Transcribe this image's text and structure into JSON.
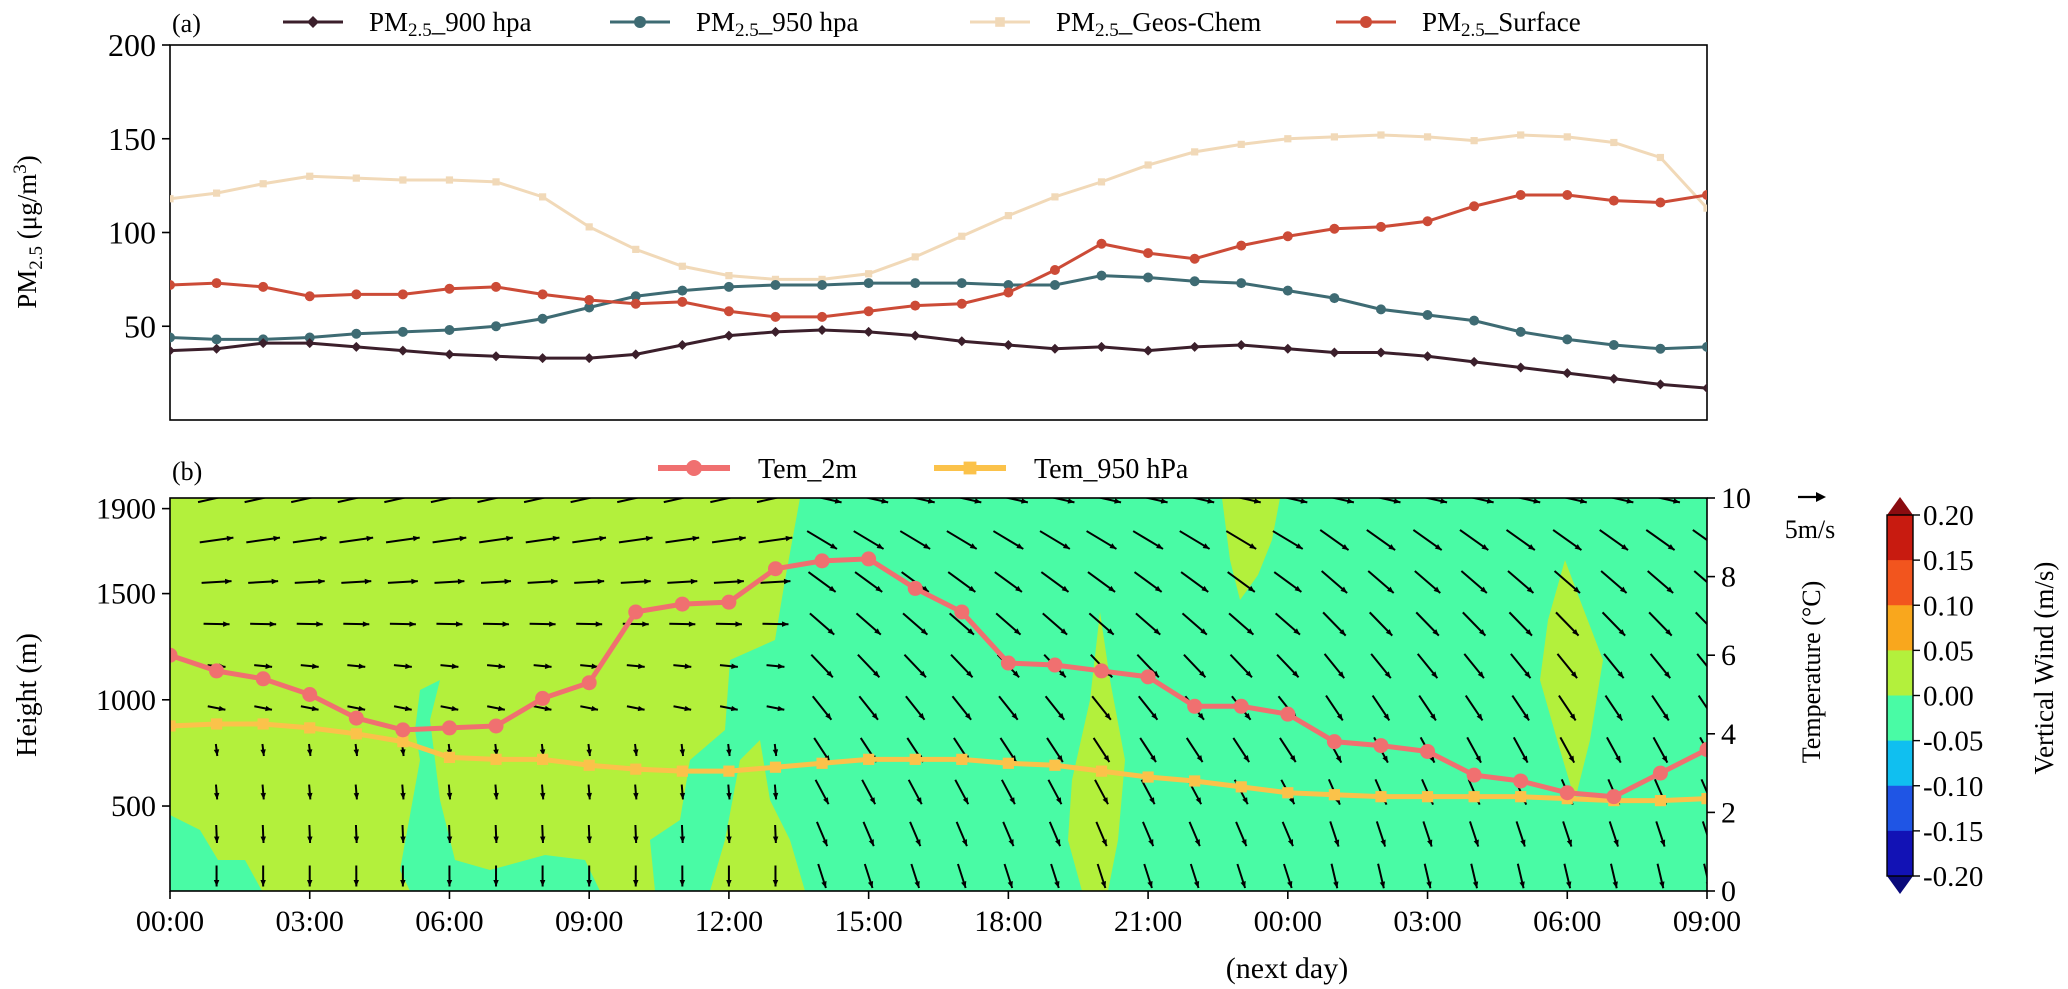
{
  "chart_data": [
    {
      "type": "line",
      "panel_label": "(a)",
      "ylabel": "PM2.5 (μg/m3)",
      "ylabel_main": "PM",
      "ylabel_sub": "2.5",
      "ylabel_unit": " (μg/m",
      "ylabel_sup": "3",
      "ylabel_close": ")",
      "ylim": [
        0,
        200
      ],
      "yticks": [
        50,
        100,
        150,
        200
      ],
      "xlim": [
        0,
        33
      ],
      "grid": false,
      "legend_position": "top",
      "series": [
        {
          "name": "PM2.5_900 hpa",
          "label_main": "PM",
          "label_sub": "2.5",
          "label_rest": "_900 hpa",
          "color": "#3b1f2b",
          "marker": "diamond",
          "values": [
            37,
            38,
            41,
            41,
            39,
            37,
            35,
            34,
            33,
            33,
            35,
            40,
            45,
            47,
            48,
            47,
            45,
            42,
            40,
            38,
            39,
            37,
            39,
            40,
            38,
            36,
            36,
            34,
            31,
            28,
            25,
            22,
            19,
            17
          ]
        },
        {
          "name": "PM2.5_950 hpa",
          "label_main": "PM",
          "label_sub": "2.5",
          "label_rest": "_950 hpa",
          "color": "#3e6b73",
          "marker": "circle",
          "values": [
            44,
            43,
            43,
            44,
            46,
            47,
            48,
            50,
            54,
            60,
            66,
            69,
            71,
            72,
            72,
            73,
            73,
            73,
            72,
            72,
            77,
            76,
            74,
            73,
            69,
            65,
            59,
            56,
            53,
            47,
            43,
            40,
            38,
            39
          ]
        },
        {
          "name": "PM2.5_Geos-Chem",
          "label_main": "PM",
          "label_sub": "2.5",
          "label_rest": "_Geos-Chem",
          "color": "#f1d9b8",
          "marker": "square",
          "values": [
            118,
            121,
            126,
            130,
            129,
            128,
            128,
            127,
            119,
            103,
            91,
            82,
            77,
            75,
            75,
            78,
            87,
            98,
            109,
            119,
            127,
            136,
            143,
            147,
            150,
            151,
            152,
            151,
            149,
            152,
            151,
            148,
            140,
            113
          ]
        },
        {
          "name": "PM2.5_Surface",
          "label_main": "PM",
          "label_sub": "2.5",
          "label_rest": "_Surface",
          "color": "#cc4b37",
          "marker": "circle",
          "values": [
            72,
            73,
            71,
            66,
            67,
            67,
            70,
            71,
            67,
            64,
            62,
            63,
            58,
            55,
            55,
            58,
            61,
            62,
            68,
            80,
            94,
            89,
            86,
            93,
            98,
            102,
            103,
            106,
            114,
            120,
            120,
            117,
            116,
            120
          ]
        }
      ]
    },
    {
      "type": "heatmap",
      "panel_label": "(b)",
      "ylabel_left": "Height (m)",
      "ylabel_right": "Temperature (°C)",
      "colorbar_label": "Vertical Wind (m/s)",
      "ylim_left": [
        100,
        1950
      ],
      "yticks_left": [
        500,
        1000,
        1500,
        1900
      ],
      "ylim_right": [
        0,
        10
      ],
      "yticks_right": [
        0,
        2,
        4,
        6,
        8,
        10
      ],
      "xlim": [
        0,
        33
      ],
      "xtick_labels": [
        "00:00",
        "03:00",
        "06:00",
        "09:00",
        "12:00",
        "15:00",
        "18:00",
        "21:00",
        "00:00",
        "03:00",
        "06:00",
        "09:00"
      ],
      "xlabel_note": "(next day)",
      "wind_scale_label": "5m/s",
      "legend_position": "top",
      "colorbar_ticks": [
        "0.20",
        "0.15",
        "0.10",
        "0.05",
        "0.00",
        "-0.05",
        "-0.10",
        "-0.15",
        "-0.20"
      ],
      "colorbar_colors": [
        "#c81b10",
        "#f2551e",
        "#f9a71d",
        "#b3f03c",
        "#49fba5",
        "#10bff0",
        "#1f55e5",
        "#1212b5"
      ],
      "series": [
        {
          "name": "Tem_2m",
          "color": "#f07070",
          "marker": "circle",
          "values": [
            6.0,
            5.6,
            5.4,
            5.0,
            4.4,
            4.1,
            4.15,
            4.2,
            4.9,
            5.3,
            7.1,
            7.3,
            7.35,
            8.2,
            8.4,
            8.45,
            7.7,
            7.1,
            5.8,
            5.75,
            5.6,
            5.45,
            4.7,
            4.7,
            4.5,
            3.8,
            3.7,
            3.55,
            2.95,
            2.8,
            2.5,
            2.4,
            3.0,
            3.6
          ]
        },
        {
          "name": "Tem_950 hPa",
          "color": "#fbc24a",
          "marker": "square",
          "values": [
            4.2,
            4.25,
            4.25,
            4.15,
            4.0,
            3.8,
            3.4,
            3.35,
            3.35,
            3.2,
            3.1,
            3.05,
            3.05,
            3.15,
            3.25,
            3.35,
            3.35,
            3.35,
            3.25,
            3.2,
            3.05,
            2.9,
            2.8,
            2.65,
            2.5,
            2.45,
            2.4,
            2.4,
            2.4,
            2.4,
            2.35,
            2.3,
            2.3,
            2.35
          ]
        }
      ]
    }
  ]
}
